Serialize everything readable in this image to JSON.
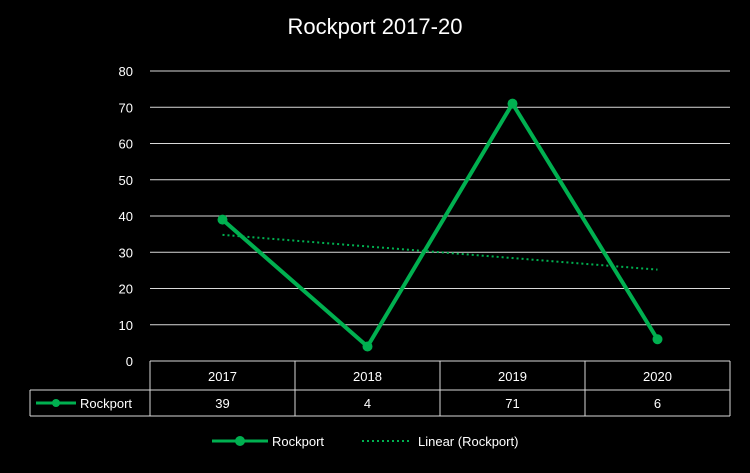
{
  "chart_data": {
    "type": "line",
    "title": "Rockport 2017-20",
    "categories": [
      "2017",
      "2018",
      "2019",
      "2020"
    ],
    "series": [
      {
        "name": "Rockport",
        "values": [
          39,
          4,
          71,
          6
        ],
        "color": "#00b050"
      }
    ],
    "trendline": {
      "name": "Linear (Rockport)",
      "type": "linear",
      "color": "#00b050",
      "style": "dotted"
    },
    "ylim": [
      0,
      80
    ],
    "yticks": [
      0,
      10,
      20,
      30,
      40,
      50,
      60,
      70,
      80
    ],
    "grid": true,
    "legend": "bottom",
    "data_table": true
  }
}
